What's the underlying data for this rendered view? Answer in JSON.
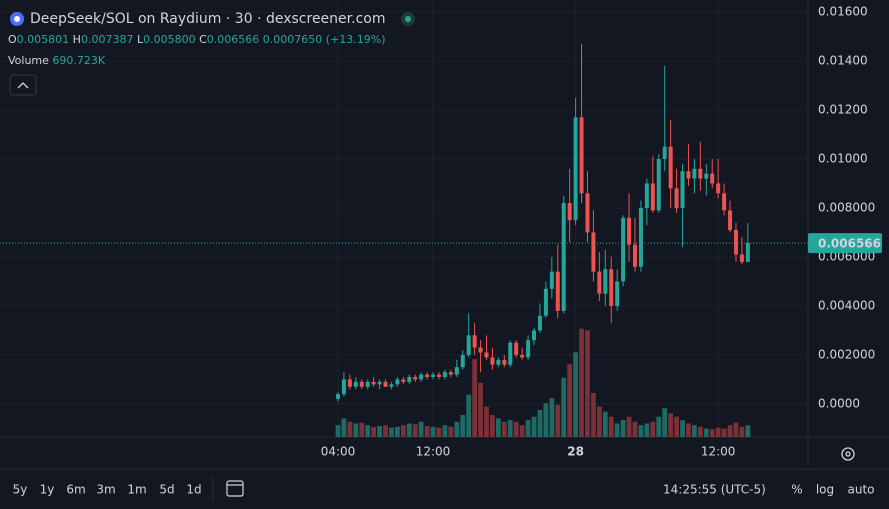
{
  "header": {
    "title": "DeepSeek/SOL on Raydium · 30 · dexscreener.com",
    "ohlc": {
      "o_label": "O",
      "o": "0.005801",
      "h_label": "H",
      "h": "0.007387",
      "l_label": "L",
      "l": "0.005800",
      "c_label": "C",
      "c": "0.006566",
      "change": "0.0007650",
      "change_pct": "(+13.19%)"
    },
    "volume_label": "Volume",
    "volume_value": "690.723K"
  },
  "chart_data": {
    "type": "candlestick",
    "categories": [
      "04:00",
      null,
      null,
      null,
      null,
      null,
      null,
      null,
      null,
      null,
      null,
      null,
      null,
      null,
      null,
      null,
      "12:00",
      null,
      null,
      null,
      null,
      null,
      null,
      null,
      null,
      null,
      null,
      null,
      null,
      null,
      null,
      null,
      null,
      null,
      null,
      null,
      null,
      null,
      null,
      null,
      "28",
      null,
      null,
      null,
      null,
      null,
      null,
      null,
      null,
      null,
      null,
      null,
      null,
      null,
      null,
      null,
      null,
      null,
      null,
      null,
      null,
      null,
      null,
      null,
      "12:00",
      null,
      null,
      null,
      null,
      null
    ],
    "open": [
      0.0002,
      0.0004,
      0.001,
      0.0007,
      0.0009,
      0.0007,
      0.0009,
      0.0008,
      0.0009,
      0.0007,
      0.0008,
      0.001,
      0.0009,
      0.0011,
      0.001,
      0.0012,
      0.0011,
      0.0012,
      0.0011,
      0.0013,
      0.0012,
      0.0015,
      0.002,
      0.0028,
      0.0023,
      0.0021,
      0.0019,
      0.0016,
      0.0018,
      0.0016,
      0.0025,
      0.002,
      0.0019,
      0.0026,
      0.003,
      0.0036,
      0.0047,
      0.0054,
      0.0038,
      0.0082,
      0.0075,
      0.0117,
      0.0086,
      0.007,
      0.0054,
      0.0045,
      0.0055,
      0.004,
      0.005,
      0.0076,
      0.0065,
      0.0056,
      0.008,
      0.009,
      0.0079,
      0.01,
      0.0105,
      0.0088,
      0.008,
      0.0095,
      0.0092,
      0.0096,
      0.0092,
      0.0094,
      0.009,
      0.0086,
      0.0079,
      0.0071,
      0.0061,
      0.005801
    ],
    "high": [
      0.0005,
      0.0013,
      0.0012,
      0.0011,
      0.001,
      0.001,
      0.0011,
      0.001,
      0.001,
      0.0009,
      0.0011,
      0.0011,
      0.0012,
      0.0012,
      0.0013,
      0.0013,
      0.0013,
      0.0013,
      0.0014,
      0.0014,
      0.0018,
      0.0022,
      0.0037,
      0.0033,
      0.0026,
      0.0028,
      0.0023,
      0.0019,
      0.002,
      0.0026,
      0.0026,
      0.0023,
      0.0028,
      0.0031,
      0.0041,
      0.005,
      0.006,
      0.0065,
      0.0085,
      0.0096,
      0.0125,
      0.0147,
      0.0095,
      0.0079,
      0.0062,
      0.0063,
      0.006,
      0.0055,
      0.0077,
      0.0086,
      0.0076,
      0.0083,
      0.0092,
      0.0101,
      0.0102,
      0.0138,
      0.0116,
      0.0096,
      0.0098,
      0.0106,
      0.01,
      0.0107,
      0.0098,
      0.01,
      0.01,
      0.009,
      0.0083,
      0.0074,
      0.0068,
      0.007387
    ],
    "low": [
      0.0001,
      0.0003,
      0.0006,
      0.0006,
      0.0006,
      0.0006,
      0.0007,
      0.0006,
      0.0007,
      0.0006,
      0.0007,
      0.0008,
      0.0008,
      0.0009,
      0.0009,
      0.001,
      0.001,
      0.001,
      0.001,
      0.0011,
      0.0011,
      0.0014,
      0.0019,
      0.002,
      0.0013,
      0.0018,
      0.0014,
      0.0015,
      0.0015,
      0.0015,
      0.0019,
      0.0018,
      0.0018,
      0.0024,
      0.0029,
      0.0035,
      0.0043,
      0.0035,
      0.0037,
      0.0066,
      0.0073,
      0.0082,
      0.0066,
      0.005,
      0.0042,
      0.004,
      0.0033,
      0.0038,
      0.0048,
      0.0058,
      0.0054,
      0.0054,
      0.0073,
      0.0078,
      0.0078,
      0.0095,
      0.008,
      0.0078,
      0.0064,
      0.0089,
      0.0086,
      0.0087,
      0.0085,
      0.0088,
      0.0084,
      0.0077,
      0.007,
      0.0058,
      0.0057,
      0.0058
    ],
    "close": [
      0.0004,
      0.001,
      0.0007,
      0.0009,
      0.0007,
      0.0009,
      0.0008,
      0.0009,
      0.0007,
      0.0008,
      0.001,
      0.0009,
      0.0011,
      0.001,
      0.0012,
      0.0011,
      0.0012,
      0.0011,
      0.0013,
      0.0012,
      0.0015,
      0.002,
      0.0028,
      0.0023,
      0.0021,
      0.0019,
      0.0016,
      0.0018,
      0.0016,
      0.0025,
      0.002,
      0.0019,
      0.0026,
      0.003,
      0.0036,
      0.0047,
      0.0054,
      0.0038,
      0.0082,
      0.0075,
      0.0117,
      0.0086,
      0.007,
      0.0054,
      0.0045,
      0.0055,
      0.004,
      0.005,
      0.0076,
      0.0065,
      0.0056,
      0.008,
      0.009,
      0.0079,
      0.01,
      0.0105,
      0.0088,
      0.008,
      0.0095,
      0.0092,
      0.0096,
      0.0092,
      0.0094,
      0.009,
      0.0086,
      0.0079,
      0.0071,
      0.0061,
      0.0058,
      0.006566
    ],
    "volume": [
      700000,
      1100000,
      900000,
      800000,
      850000,
      700000,
      600000,
      650000,
      700000,
      550000,
      600000,
      700000,
      800000,
      750000,
      900000,
      650000,
      600000,
      550000,
      700000,
      600000,
      900000,
      1300000,
      2500000,
      4600000,
      3200000,
      1800000,
      1300000,
      1100000,
      900000,
      1000000,
      900000,
      700000,
      1000000,
      1200000,
      1600000,
      2000000,
      2300000,
      1900000,
      3500000,
      4300000,
      5000000,
      6400000,
      6300000,
      2600000,
      1800000,
      1500000,
      1200000,
      800000,
      1000000,
      1200000,
      900000,
      700000,
      800000,
      900000,
      1200000,
      1700000,
      1400000,
      1200000,
      1000000,
      800000,
      700000,
      600000,
      500000,
      450000,
      550000,
      500000,
      700000,
      850000,
      600000,
      690723
    ],
    "ylim": [
      -0.00135,
      0.01649
    ],
    "yticks": [
      {
        "value": 0.016,
        "label": "0.01600"
      },
      {
        "value": 0.014,
        "label": "0.01400"
      },
      {
        "value": 0.012,
        "label": "0.01200"
      },
      {
        "value": 0.01,
        "label": "0.01000"
      },
      {
        "value": 0.008,
        "label": "0.008000"
      },
      {
        "value": 0.006,
        "label": "0.006000"
      },
      {
        "value": 0.004,
        "label": "0.004000"
      },
      {
        "value": 0.002,
        "label": "0.002000"
      },
      {
        "value": 0,
        "label": "0.0000"
      }
    ],
    "y2lim": [
      0,
      6500000
    ],
    "last_price": {
      "value": 0.006566,
      "label": "0.006566"
    },
    "up_color": "#26a69a",
    "down_color": "#ef5350",
    "volume_up_color": "#1d6b63",
    "volume_down_color": "#7c3037",
    "grid": true
  },
  "toolbar": {
    "ranges": [
      "5y",
      "1y",
      "6m",
      "3m",
      "1m",
      "5d",
      "1d"
    ],
    "clock": "14:25:55 (UTC-5)",
    "percent": "%",
    "log": "log",
    "auto": "auto"
  }
}
